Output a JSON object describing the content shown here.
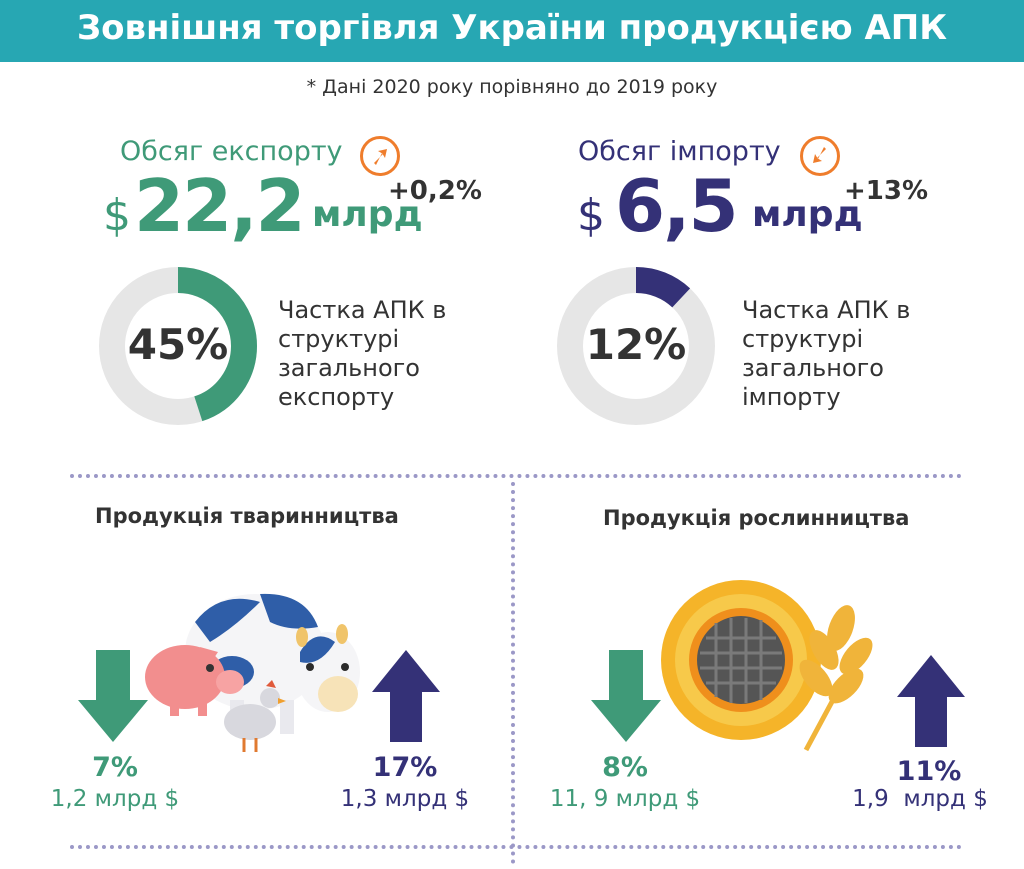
{
  "header": {
    "title": "Зовнішня торгівля України продукцією АПК",
    "note": "* Дані 2020 року порівняно до 2019 року"
  },
  "export": {
    "label": "Обсяг експорту",
    "currency": "$",
    "value": "22,2",
    "unit": "млрд",
    "change": "+0,2%",
    "share_value": 45,
    "share_label": "45%",
    "share_text_1": "Частка АПК в",
    "share_text_2": "структурі",
    "share_text_3": "загального",
    "share_text_4": "експорту",
    "arrow_icon": "arrow-up-right-icon",
    "color": "#3f9a78"
  },
  "import": {
    "label": "Обсяг імпорту",
    "currency": "$",
    "value": "6,5",
    "unit": "млрд",
    "change": "+13%",
    "share_value": 12,
    "share_label": "12%",
    "share_text_1": "Частка АПК в",
    "share_text_2": "структурі",
    "share_text_3": "загального",
    "share_text_4": "імпорту",
    "arrow_icon": "arrow-down-left-icon",
    "color": "#343177"
  },
  "livestock": {
    "title": "Продукція тваринництва",
    "export_pct": "7%",
    "export_value": "1,2 млрд $",
    "import_pct": "17%",
    "import_value": "1,3 млрд $"
  },
  "crops": {
    "title": "Продукція рослинництва",
    "export_pct": "8%",
    "export_value": "11, 9 млрд $",
    "import_pct": "11%",
    "import_value": "1,9  млрд $"
  },
  "colors": {
    "banner": "#27a7b3",
    "export_green": "#3f9a78",
    "import_navy": "#343177",
    "accent_orange": "#ef7d2c",
    "track_gray": "#e6e6e6"
  }
}
